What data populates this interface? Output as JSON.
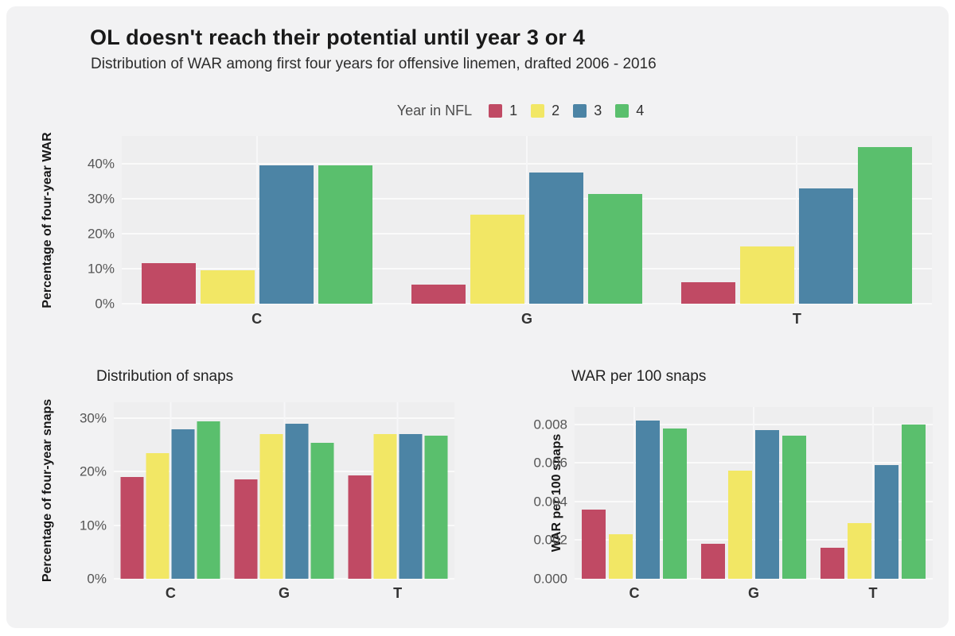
{
  "header": {
    "title": "OL doesn't reach their potential until year 3 or 4",
    "subtitle": "Distribution of WAR among first four years for offensive linemen, drafted 2006 - 2016"
  },
  "legend": {
    "title": "Year in NFL",
    "items": [
      {
        "label": "1",
        "color": "#c04a64"
      },
      {
        "label": "2",
        "color": "#f2e765"
      },
      {
        "label": "3",
        "color": "#4c84a5"
      },
      {
        "label": "4",
        "color": "#5abf6d"
      }
    ]
  },
  "colors": {
    "year1": "#c04a64",
    "year2": "#f2e765",
    "year3": "#4c84a5",
    "year4": "#5abf6d",
    "panel_bg": "#eeeeef",
    "card_bg": "#f2f2f3",
    "gridline": "#fafafa"
  },
  "chart_data": [
    {
      "id": "war-share",
      "type": "bar",
      "title": "",
      "ylabel": "Percentage of four-year WAR",
      "xlabel": "",
      "categories": [
        "C",
        "G",
        "T"
      ],
      "series": [
        {
          "name": "1",
          "color": "#c04a64",
          "values": [
            11.5,
            5.5,
            6.2
          ]
        },
        {
          "name": "2",
          "color": "#f2e765",
          "values": [
            9.5,
            25.5,
            16.3
          ]
        },
        {
          "name": "3",
          "color": "#4c84a5",
          "values": [
            39.5,
            37.5,
            33.0
          ]
        },
        {
          "name": "4",
          "color": "#5abf6d",
          "values": [
            39.5,
            31.5,
            44.8
          ]
        }
      ],
      "ylim": [
        0,
        48
      ],
      "grid": true,
      "legend_position": "top",
      "yticks": [
        {
          "label": "0%",
          "value": 0
        },
        {
          "label": "10%",
          "value": 10
        },
        {
          "label": "20%",
          "value": 20
        },
        {
          "label": "30%",
          "value": 30
        },
        {
          "label": "40%",
          "value": 40
        }
      ]
    },
    {
      "id": "snaps-share",
      "type": "bar",
      "title": "Distribution of snaps",
      "ylabel": "Percentage of four-year snaps",
      "xlabel": "",
      "categories": [
        "C",
        "G",
        "T"
      ],
      "series": [
        {
          "name": "1",
          "color": "#c04a64",
          "values": [
            19.0,
            18.6,
            19.3
          ]
        },
        {
          "name": "2",
          "color": "#f2e765",
          "values": [
            23.5,
            27.0,
            27.0
          ]
        },
        {
          "name": "3",
          "color": "#4c84a5",
          "values": [
            28.0,
            29.0,
            27.1
          ]
        },
        {
          "name": "4",
          "color": "#5abf6d",
          "values": [
            29.5,
            25.4,
            26.8
          ]
        }
      ],
      "ylim": [
        0,
        33
      ],
      "grid": true,
      "yticks": [
        {
          "label": "0%",
          "value": 0
        },
        {
          "label": "10%",
          "value": 10
        },
        {
          "label": "20%",
          "value": 20
        },
        {
          "label": "30%",
          "value": 30
        }
      ]
    },
    {
      "id": "war-per-100",
      "type": "bar",
      "title": "WAR per 100 snaps",
      "ylabel": "WAR per 100 snaps",
      "xlabel": "",
      "categories": [
        "C",
        "G",
        "T"
      ],
      "series": [
        {
          "name": "1",
          "color": "#c04a64",
          "values": [
            0.0036,
            0.0018,
            0.0016
          ]
        },
        {
          "name": "2",
          "color": "#f2e765",
          "values": [
            0.0023,
            0.0056,
            0.0029
          ]
        },
        {
          "name": "3",
          "color": "#4c84a5",
          "values": [
            0.0082,
            0.0077,
            0.0059
          ]
        },
        {
          "name": "4",
          "color": "#5abf6d",
          "values": [
            0.0078,
            0.0074,
            0.008
          ]
        }
      ],
      "ylim": [
        0,
        0.0089
      ],
      "grid": true,
      "yticks": [
        {
          "label": "0.000",
          "value": 0
        },
        {
          "label": "0.002",
          "value": 0.002
        },
        {
          "label": "0.004",
          "value": 0.004
        },
        {
          "label": "0.006",
          "value": 0.006
        },
        {
          "label": "0.008",
          "value": 0.008
        }
      ]
    }
  ]
}
